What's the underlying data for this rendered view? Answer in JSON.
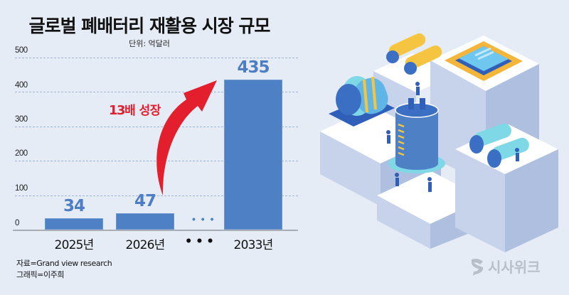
{
  "header": {
    "title": "글로벌 폐배터리 재활용 시장 규모",
    "unit": "단위: 억달러"
  },
  "annotation": {
    "growth_number": "13",
    "growth_text": "배 성장",
    "arrow_color": "#e31e2d"
  },
  "footer": {
    "source": "자료=Grand view research",
    "graphic": "그래픽=이주희"
  },
  "logo": {
    "text": "시사위크"
  },
  "colors": {
    "background": "#e6ecf6",
    "bar": "#4e80c6",
    "value_label": "#4d7ec4",
    "gridline": "#9fb6de"
  },
  "chart_data": {
    "type": "bar",
    "title": "글로벌 폐배터리 재활용 시장 규모",
    "subtitle": "단위: 억달러",
    "xlabel": "",
    "ylabel": "억달러",
    "categories": [
      "2025년",
      "2026년",
      "…",
      "2033년"
    ],
    "values": [
      34,
      47,
      null,
      435
    ],
    "value_labels": [
      "34",
      "47",
      "",
      "435"
    ],
    "ylim": [
      0,
      500
    ],
    "yticks": [
      "0",
      "100",
      "200",
      "300",
      "400",
      "500"
    ],
    "grid": true,
    "legend": "none",
    "annotations": [
      "13배 성장"
    ]
  }
}
